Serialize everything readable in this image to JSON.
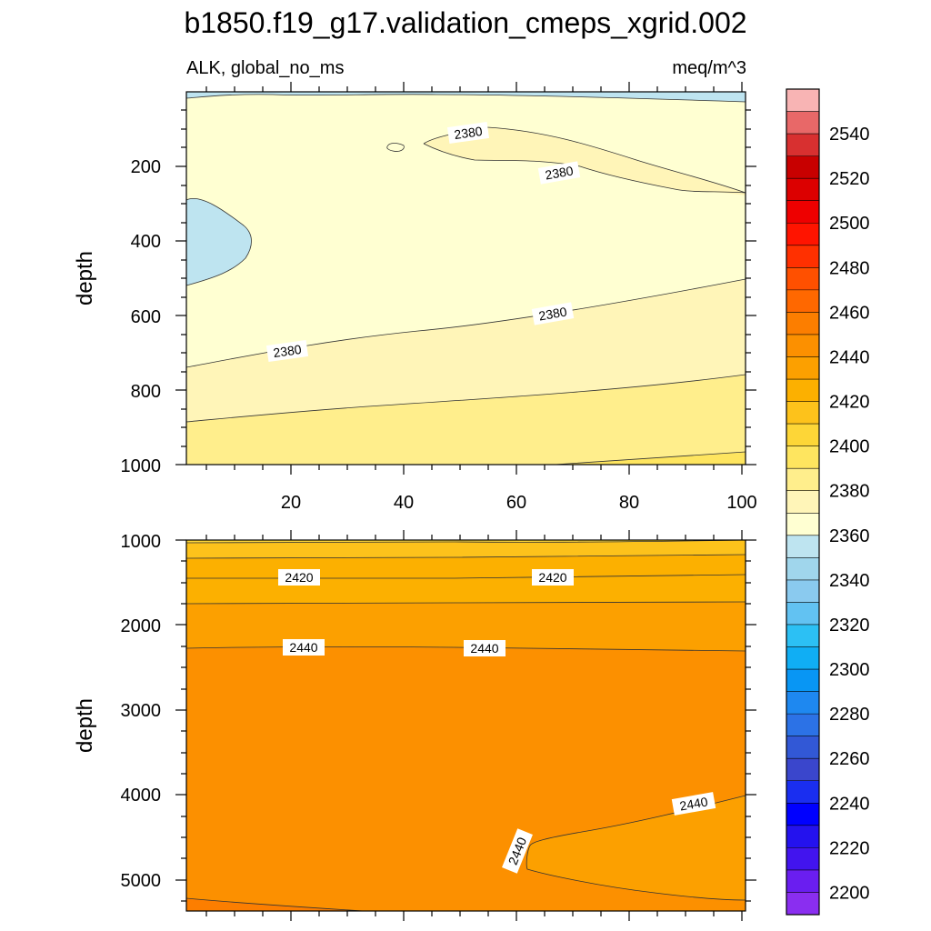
{
  "title": "b1850.f19_g17.validation_cmeps_xgrid.002",
  "variable_label": "ALK, global_no_ms",
  "units_label": "meq/m^3",
  "colorbar": {
    "labels": [
      "2540",
      "2520",
      "2500",
      "2480",
      "2460",
      "2440",
      "2420",
      "2400",
      "2380",
      "2360",
      "2340",
      "2320",
      "2300",
      "2280",
      "2260",
      "2240",
      "2220",
      "2200"
    ],
    "colors_top_to_bottom": [
      "#f8b4b4",
      "#e86868",
      "#d83030",
      "#c80000",
      "#dc0000",
      "#ee0000",
      "#ff1400",
      "#ff3000",
      "#ff5000",
      "#ff6800",
      "#fc7e00",
      "#fc9000",
      "#fca000",
      "#fcb000",
      "#fdc21b",
      "#fdd637",
      "#fee55f",
      "#ffee8c",
      "#fff5b8",
      "#ffffd2",
      "#bee4f0",
      "#a0d6ec",
      "#8acaef",
      "#62c2f2",
      "#2cc0f4",
      "#10aef4",
      "#0896f4",
      "#1e88f0",
      "#2c72e6",
      "#3258d6",
      "#3a46cc",
      "#1a2ef0",
      "#0000ff",
      "#2412ee",
      "#4214ee",
      "#6a1ef0",
      "#8a2ef0"
    ]
  },
  "chart_data": [
    {
      "type": "contour",
      "panel": "upper",
      "ylabel": "depth",
      "xlim": [
        1,
        101
      ],
      "ylim": [
        1000,
        5
      ],
      "x_ticks": [
        "20",
        "40",
        "60",
        "80",
        "100"
      ],
      "y_ticks": [
        "200",
        "400",
        "600",
        "800",
        "1000"
      ],
      "contour_interval": 10,
      "contour_labels": [
        "2380",
        "2380",
        "2380",
        "2380"
      ],
      "regions": [
        {
          "range": [
            2350,
            2360
          ],
          "location": "surface layer 5-60 m and pocket near x 1-12, depth 280-520"
        },
        {
          "range": [
            2360,
            2370
          ],
          "location": "upper water column 60-730 m"
        },
        {
          "range": [
            2370,
            2380
          ],
          "location": "thermocline band"
        },
        {
          "range": [
            2380,
            2390
          ],
          "location": "deepest band near 1000 m"
        }
      ]
    },
    {
      "type": "contour",
      "panel": "lower",
      "ylabel": "depth",
      "xlim": [
        1,
        101
      ],
      "ylim": [
        5400,
        1000
      ],
      "y_ticks": [
        "1000",
        "2000",
        "3000",
        "4000",
        "5000"
      ],
      "contour_interval": 10,
      "contour_labels": [
        "2420",
        "2420",
        "2440",
        "2440",
        "2440",
        "2440"
      ],
      "regions": [
        {
          "range": [
            2390,
            2400
          ],
          "location": "top near 1000 m"
        },
        {
          "range": [
            2400,
            2420
          ],
          "location": "1000-1700 m"
        },
        {
          "range": [
            2420,
            2430
          ],
          "location": "1700-2250 m"
        },
        {
          "range": [
            2430,
            2440
          ],
          "location": "deep ocean below 2250 m"
        },
        {
          "range": [
            2440,
            2450
          ],
          "location": "wedge from x 60 to 101, depth 4000-5250"
        }
      ]
    }
  ]
}
